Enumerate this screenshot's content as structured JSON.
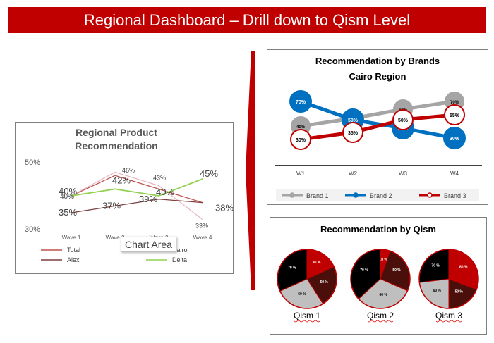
{
  "banner": {
    "title": "Regional Dashboard – Drill down to Qism Level"
  },
  "tooltip": {
    "text": "Chart Area"
  },
  "colors": {
    "brand_red": "#c00000",
    "brand1": "#a5a5a5",
    "brand2": "#0070c0",
    "brand3": "#c00000"
  },
  "chart_data": [
    {
      "type": "line",
      "title": "Regional Product Recommendation",
      "title_lines": [
        "Regional Product",
        "Recommendation"
      ],
      "categories": [
        "Wave 1",
        "Wave 2",
        "Wave 3",
        "Wave 4"
      ],
      "category_labels": [
        "Wave 1",
        "Wave 2",
        "Wave 3",
        "Wave 4"
      ],
      "ylim": [
        30,
        50
      ],
      "yticks": [
        "50%",
        "30%"
      ],
      "legend_position": "bottom",
      "series": [
        {
          "name": "Total",
          "color": "#c0504d",
          "values": [
            40,
            46,
            42,
            38
          ],
          "labels": [
            "",
            "46%",
            "",
            "38%"
          ]
        },
        {
          "name": "Cairo",
          "color": "#e6b8c1",
          "values": [
            40,
            47,
            43,
            33
          ],
          "labels": [
            "40%",
            "",
            "43%",
            "33%"
          ]
        },
        {
          "name": "Alex",
          "color": "#7f3f3f",
          "values": [
            35,
            37,
            39,
            38
          ],
          "labels": [
            "35%",
            "37%",
            "39%",
            ""
          ]
        },
        {
          "name": "Delta",
          "color": "#92d050",
          "values": [
            40,
            42,
            40,
            45
          ],
          "labels": [
            "40%",
            "42%",
            "40%",
            "45%"
          ]
        }
      ]
    },
    {
      "type": "line",
      "title": "Recommendation by Brands Cairo Region",
      "title_lines": [
        "Recommendation by Brands",
        "Cairo Region"
      ],
      "categories": [
        "W1",
        "W2",
        "W3",
        "W4"
      ],
      "ylim": [
        20,
        80
      ],
      "legend_position": "bottom",
      "series": [
        {
          "name": "Brand 1",
          "color": "#a5a5a5",
          "values": [
            40,
            50,
            60,
            70
          ],
          "labels": [
            "40%",
            "50%",
            "60%",
            "70%"
          ]
        },
        {
          "name": "Brand 2",
          "color": "#0070c0",
          "values": [
            70,
            50,
            40,
            30
          ],
          "labels": [
            "70%",
            "50%",
            "40%",
            "30%"
          ]
        },
        {
          "name": "Brand 3",
          "color": "#c00000",
          "values": [
            30,
            35,
            50,
            55
          ],
          "labels": [
            "30%",
            "35%",
            "50%",
            "55%"
          ]
        }
      ]
    },
    {
      "type": "pie",
      "title": "Recommendation by Qism",
      "pies": [
        {
          "name": "Qism 1",
          "slices": [
            {
              "value": 40,
              "label": "40 %",
              "color": "#c00000"
            },
            {
              "value": 50,
              "label": "50 %",
              "color": "#4a0f0a"
            },
            {
              "value": 60,
              "label": "60 %",
              "color": "#bfbfbf"
            },
            {
              "value": 70,
              "label": "70 %",
              "color": "#000000"
            }
          ]
        },
        {
          "name": "Qism 2",
          "slices": [
            {
              "value": 10,
              "label": "10 %",
              "color": "#c00000"
            },
            {
              "value": 50,
              "label": "50 %",
              "color": "#4a0f0a"
            },
            {
              "value": 60,
              "label": "60 %",
              "color": "#bfbfbf"
            },
            {
              "value": 70,
              "label": "70 %",
              "color": "#000000"
            }
          ]
        },
        {
          "name": "Qism 3",
          "slices": [
            {
              "value": 80,
              "label": "80 %",
              "color": "#c00000"
            },
            {
              "value": 50,
              "label": "50 %",
              "color": "#4a0f0a"
            },
            {
              "value": 60,
              "label": "60 %",
              "color": "#bfbfbf"
            },
            {
              "value": 70,
              "label": "70 %",
              "color": "#000000"
            }
          ]
        }
      ]
    }
  ]
}
